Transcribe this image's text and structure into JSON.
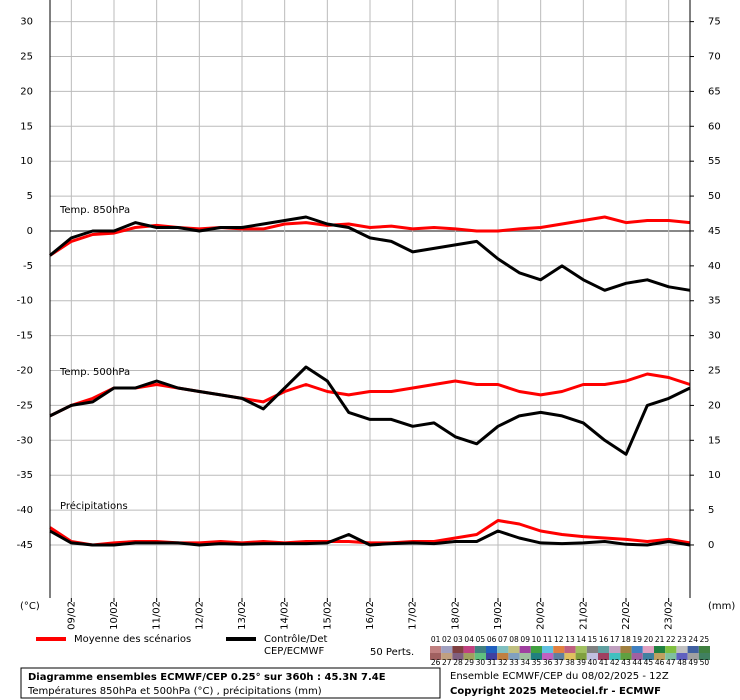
{
  "chart_data": {
    "type": "line",
    "y_unit": "(°C)",
    "y2_unit": "(mm)",
    "ylim": [
      -52.6,
      33.1
    ],
    "yticks": [
      -45,
      -40,
      -35,
      -30,
      -25,
      -20,
      -15,
      -10,
      -5,
      0,
      5,
      10,
      15,
      20,
      25,
      30
    ],
    "y2lim": [
      -7.6,
      78.1
    ],
    "y2ticks": [
      0,
      5,
      10,
      15,
      20,
      25,
      30,
      35,
      40,
      45,
      50,
      55,
      60,
      65,
      70,
      75
    ],
    "categories": [
      "09/02",
      "10/02",
      "11/02",
      "12/02",
      "13/02",
      "14/02",
      "15/02",
      "16/02",
      "17/02",
      "18/02",
      "19/02",
      "20/02",
      "21/02",
      "22/02",
      "23/02"
    ],
    "grid": true,
    "legend": [
      {
        "name": [
          "Moyenne des scénarios"
        ],
        "color": "#ff0000"
      },
      {
        "name": [
          "Contrôle/Det",
          "CEP/ECMWF"
        ],
        "color": "#000000"
      }
    ],
    "panels": [
      {
        "label": "Temp. 850hPa",
        "axis": "y",
        "series": [
          {
            "values": [
              -3.5,
              -1.5,
              -0.5,
              -0.3,
              0.5,
              0.8,
              0.5,
              0.3,
              0.5,
              0.3,
              0.3,
              1.0,
              1.2,
              0.8,
              1.0,
              0.5,
              0.7,
              0.3,
              0.5,
              0.3,
              0,
              0,
              0.3,
              0.5,
              1,
              1.5,
              2,
              1.2,
              1.5,
              1.5,
              1.2
            ]
          },
          {
            "values": [
              -3.5,
              -1,
              0,
              0,
              1.2,
              0.5,
              0.5,
              0,
              0.5,
              0.5,
              1,
              1.5,
              2,
              1,
              0.5,
              -1,
              -1.5,
              -3,
              -2.5,
              -2,
              -1.5,
              -4,
              -6,
              -7,
              -5,
              -7,
              -8.5,
              -7.5,
              -7,
              -8,
              -8.5
            ]
          }
        ]
      },
      {
        "label": "Temp. 500hPa",
        "axis": "y",
        "series": [
          {
            "values": [
              -26.5,
              -25,
              -24,
              -22.5,
              -22.5,
              -22,
              -22.5,
              -23,
              -23.5,
              -24,
              -24.5,
              -23,
              -22,
              -23,
              -23.5,
              -23,
              -23,
              -22.5,
              -22,
              -21.5,
              -22,
              -22,
              -23,
              -23.5,
              -23,
              -22,
              -22,
              -21.5,
              -20.5,
              -21,
              -22
            ]
          },
          {
            "values": [
              -26.5,
              -25,
              -24.5,
              -22.5,
              -22.5,
              -21.5,
              -22.5,
              -23,
              -23.5,
              -24,
              -25.5,
              -22.5,
              -19.5,
              -21.5,
              -26,
              -27,
              -27,
              -28,
              -27.5,
              -29.5,
              -30.5,
              -28,
              -26.5,
              -26,
              -26.5,
              -27.5,
              -30,
              -32,
              -25,
              -24,
              -22.5
            ]
          }
        ]
      },
      {
        "label": "Précipitations",
        "axis": "y2",
        "series": [
          {
            "values": [
              2.5,
              0.5,
              0,
              0.3,
              0.5,
              0.5,
              0.3,
              0.3,
              0.5,
              0.3,
              0.5,
              0.3,
              0.5,
              0.5,
              0.5,
              0.3,
              0.3,
              0.5,
              0.5,
              1,
              1.5,
              3.5,
              3,
              2,
              1.5,
              1.2,
              1,
              0.8,
              0.5,
              0.8,
              0.3
            ]
          },
          {
            "values": [
              2,
              0.3,
              0,
              0,
              0.3,
              0.3,
              0.3,
              0,
              0.2,
              0.1,
              0.2,
              0.2,
              0.2,
              0.3,
              1.5,
              0,
              0.2,
              0.3,
              0.2,
              0.5,
              0.5,
              2,
              1,
              0.3,
              0.2,
              0.3,
              0.5,
              0.1,
              0,
              0.5,
              0
            ]
          }
        ]
      }
    ],
    "perturbations": {
      "label": "50 Perts.",
      "numbers": [
        "01",
        "02",
        "03",
        "04",
        "05",
        "06",
        "07",
        "08",
        "09",
        "10",
        "11",
        "12",
        "13",
        "14",
        "15",
        "16",
        "17",
        "18",
        "19",
        "20",
        "21",
        "22",
        "23",
        "24",
        "25",
        "26",
        "27",
        "28",
        "29",
        "30",
        "31",
        "32",
        "33",
        "34",
        "35",
        "36",
        "37",
        "38",
        "39",
        "40",
        "41",
        "42",
        "43",
        "44",
        "45",
        "46",
        "47",
        "48",
        "49",
        "50"
      ],
      "colors": [
        "#c08080",
        "#a0a0c0",
        "#804040",
        "#c04080",
        "#408080",
        "#2060c0",
        "#80c0c0",
        "#c0c080",
        "#a040a0",
        "#40a040",
        "#60c0e0",
        "#e08040",
        "#c06080",
        "#a0c060",
        "#808080",
        "#60a0a0",
        "#c0a0c0",
        "#a08040",
        "#4080c0",
        "#e0a0c0",
        "#208040",
        "#80c040",
        "#c0c0c0",
        "#4060a0",
        "#408040",
        "#a06060",
        "#c0a080",
        "#806080",
        "#a0a060",
        "#60c080",
        "#4040a0",
        "#c08040",
        "#80a0c0",
        "#a0c0a0",
        "#208080",
        "#c060c0",
        "#6080a0",
        "#e0c060",
        "#80a040",
        "#c0c0e0",
        "#a04060",
        "#40c0c0",
        "#60a040",
        "#a060a0",
        "#4080a0",
        "#c0a060",
        "#80c0a0",
        "#6060c0",
        "#a0a0a0",
        "#408060"
      ]
    },
    "footer": {
      "title": "Diagramme ensembles ECMWF/CEP 0.25° sur 360h : 45.3N 7.4E",
      "subtitle": "Températures 850hPa et 500hPa (°C) , précipitations (mm)",
      "run": "Ensemble ECMWF/CEP du 08/02/2025 - 12Z",
      "copyright": "Copyright 2025 Meteociel.fr - ECMWF"
    }
  }
}
